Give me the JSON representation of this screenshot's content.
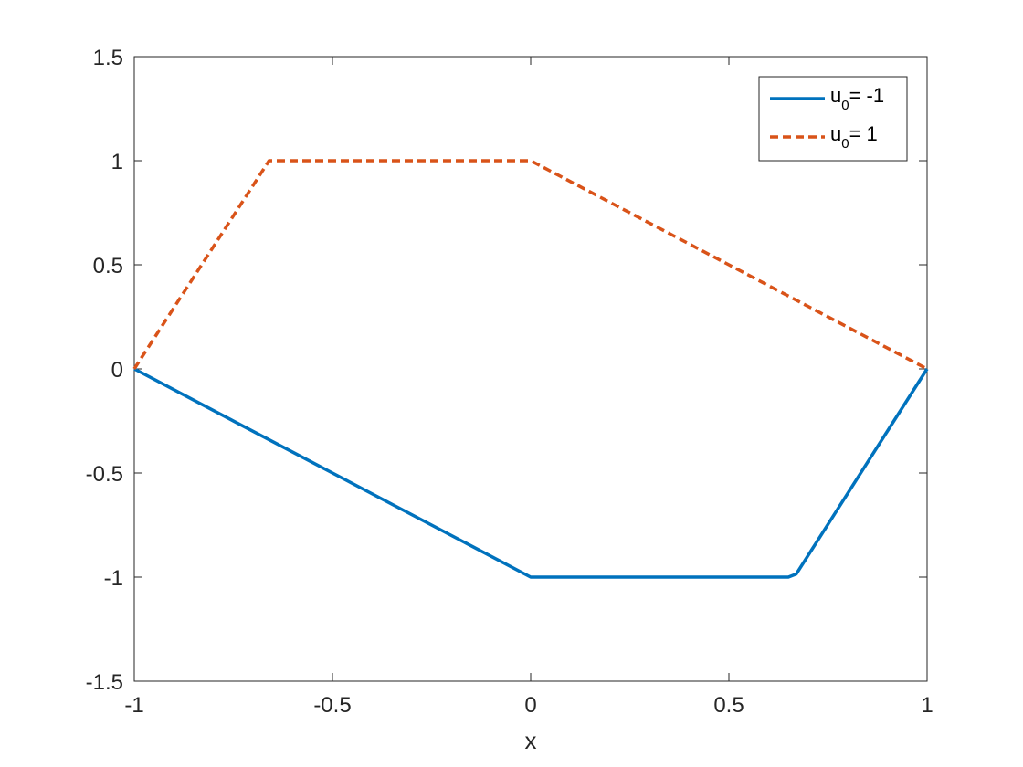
{
  "chart_data": {
    "type": "line",
    "title": "",
    "xlabel": "x",
    "ylabel": "",
    "xlim": [
      -1,
      1
    ],
    "ylim": [
      -1.5,
      1.5
    ],
    "xticks": [
      -1,
      -0.5,
      0,
      0.5,
      1
    ],
    "xtick_labels": [
      "-1",
      "-0.5",
      "0",
      "0.5",
      "1"
    ],
    "yticks": [
      -1.5,
      -1,
      -0.5,
      0,
      0.5,
      1,
      1.5
    ],
    "ytick_labels": [
      "-1.5",
      "-1",
      "-0.5",
      "0",
      "0.5",
      "1",
      "1.5"
    ],
    "grid": false,
    "legend_position": "top-right",
    "series": [
      {
        "name": "u0= -1",
        "legend_base": "u",
        "legend_sub": "0",
        "legend_tail": "= -1",
        "color": "#0072BD",
        "line_style": "solid",
        "x": [
          -1,
          -0.5,
          0,
          0.02,
          0.65,
          0.67,
          1
        ],
        "y": [
          0,
          -0.5,
          -1,
          -1,
          -1,
          -0.985,
          0
        ]
      },
      {
        "name": "u0= 1",
        "legend_base": "u",
        "legend_sub": "0",
        "legend_tail": "= 1",
        "color": "#D95319",
        "line_style": "dashed",
        "x": [
          -1,
          -0.66,
          -0.5,
          0,
          0.5,
          1
        ],
        "y": [
          0,
          1,
          1,
          1,
          0.5,
          0
        ]
      }
    ]
  }
}
